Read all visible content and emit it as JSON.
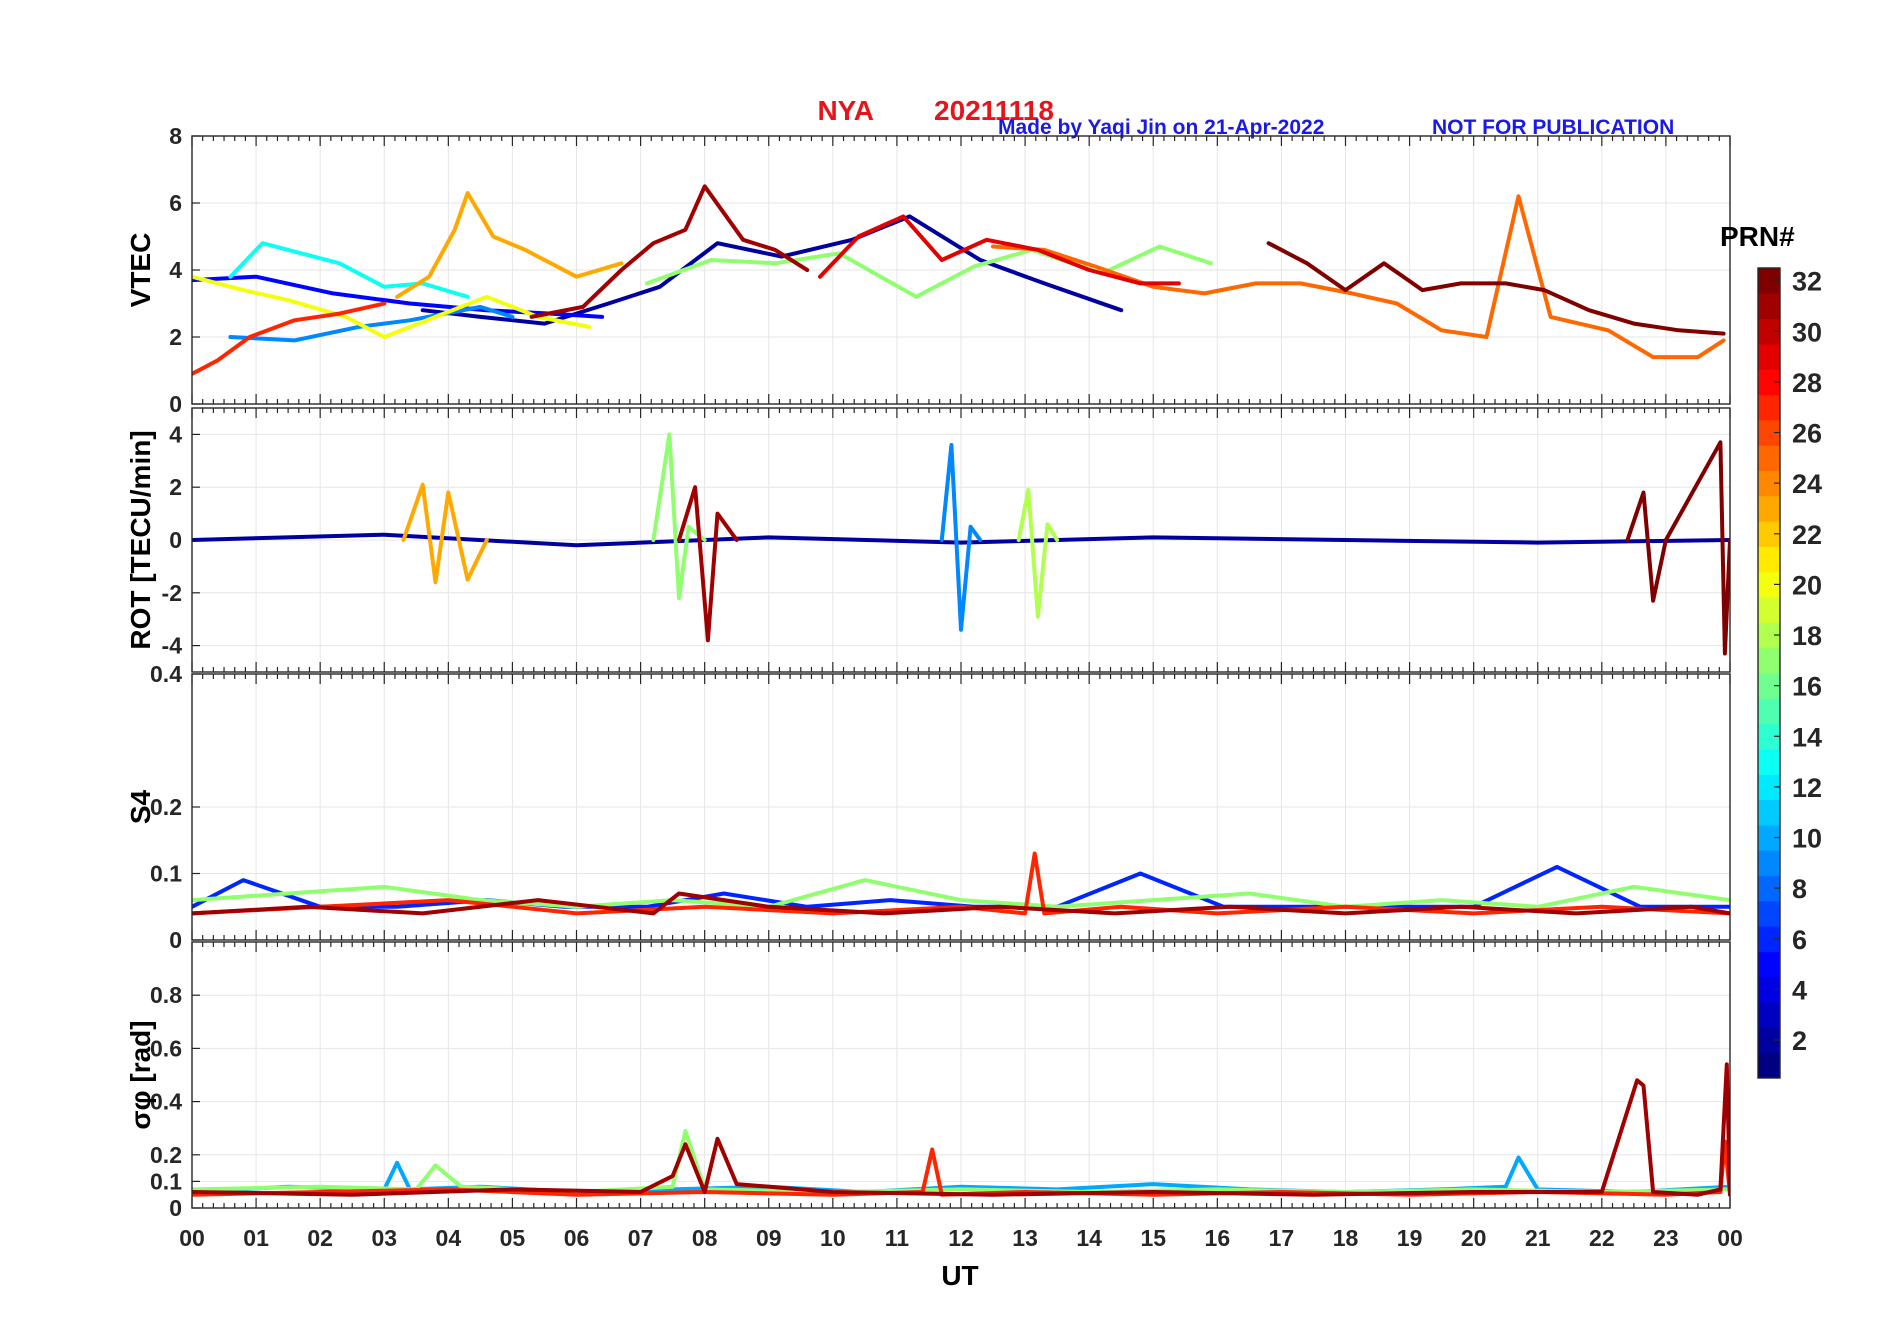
{
  "header": {
    "station": "NYA",
    "date": "20211118",
    "made_by": "Made by Yaqi Jin on 21-Apr-2022",
    "notice": "NOT FOR PUBLICATION",
    "station_color": "#e8141c",
    "note_color": "#1a1ae6"
  },
  "colorbar": {
    "title": "PRN#",
    "min": 1,
    "max": 32,
    "ticks": [
      "2",
      "4",
      "6",
      "8",
      "10",
      "12",
      "14",
      "16",
      "18",
      "20",
      "22",
      "24",
      "26",
      "28",
      "30",
      "32"
    ],
    "colormap": "jet"
  },
  "chart_data": [
    {
      "type": "line",
      "panel": "vtec",
      "ylabel": "VTEC",
      "ylim": [
        0,
        8
      ],
      "yticks": [
        "0",
        "2",
        "4",
        "6",
        "8"
      ],
      "xlim": [
        0,
        24
      ],
      "grid": true,
      "series": [
        {
          "prn": 2,
          "x": [
            3.6,
            4.5,
            5.5,
            6.5,
            7.3,
            8.2,
            9.2,
            10.3,
            11.2,
            12.3,
            13.3,
            14.5
          ],
          "y": [
            2.8,
            2.6,
            2.4,
            3.0,
            3.5,
            4.8,
            4.4,
            4.9,
            5.6,
            4.3,
            3.6,
            2.8
          ]
        },
        {
          "prn": 5,
          "x": [
            0.0,
            1.0,
            2.2,
            3.4,
            4.6,
            5.6,
            6.4
          ],
          "y": [
            3.7,
            3.8,
            3.3,
            3.0,
            2.8,
            2.7,
            2.6
          ]
        },
        {
          "prn": 9,
          "x": [
            0.6,
            1.6,
            2.6,
            3.4,
            4.5,
            5.0
          ],
          "y": [
            2.0,
            1.9,
            2.3,
            2.5,
            2.9,
            2.6
          ]
        },
        {
          "prn": 13,
          "x": [
            0.6,
            1.1,
            1.5,
            2.3,
            3.0,
            3.6,
            4.3
          ],
          "y": [
            3.8,
            4.8,
            4.6,
            4.2,
            3.5,
            3.6,
            3.2
          ]
        },
        {
          "prn": 17,
          "x": [
            7.1,
            8.1,
            9.1,
            10.1,
            11.3,
            12.2,
            13.1,
            14.2,
            15.1,
            15.9
          ],
          "y": [
            3.6,
            4.3,
            4.2,
            4.5,
            3.2,
            4.1,
            4.6,
            3.9,
            4.7,
            4.2
          ]
        },
        {
          "prn": 20,
          "x": [
            0.0,
            0.8,
            1.5,
            2.4,
            3.0,
            3.8,
            4.6,
            5.4,
            6.2
          ],
          "y": [
            3.8,
            3.4,
            3.1,
            2.6,
            2.0,
            2.6,
            3.2,
            2.6,
            2.3
          ]
        },
        {
          "prn": 23,
          "x": [
            3.2,
            3.7,
            4.1,
            4.3,
            4.7,
            5.2,
            6.0,
            6.7
          ],
          "y": [
            3.2,
            3.8,
            5.2,
            6.3,
            5.0,
            4.6,
            3.8,
            4.2
          ]
        },
        {
          "prn": 25,
          "x": [
            12.5,
            13.3,
            14.1,
            15.0,
            15.8,
            16.6,
            17.3,
            18.1,
            18.8,
            19.5,
            20.2,
            20.7,
            21.2,
            22.1,
            22.8,
            23.5,
            23.9
          ],
          "y": [
            4.7,
            4.6,
            4.1,
            3.5,
            3.3,
            3.6,
            3.6,
            3.3,
            3.0,
            2.2,
            2.0,
            6.2,
            2.6,
            2.2,
            1.4,
            1.4,
            1.9
          ]
        },
        {
          "prn": 27,
          "x": [
            0.0,
            0.4,
            0.9,
            1.6,
            2.3,
            3.0
          ],
          "y": [
            0.9,
            1.3,
            2.0,
            2.5,
            2.7,
            3.0
          ]
        },
        {
          "prn": 29,
          "x": [
            9.8,
            10.4,
            11.1,
            11.7,
            12.4,
            13.2,
            14.0,
            14.8,
            15.4
          ],
          "y": [
            3.8,
            5.0,
            5.6,
            4.3,
            4.9,
            4.6,
            4.0,
            3.6,
            3.6
          ]
        },
        {
          "prn": 31,
          "x": [
            5.3,
            6.1,
            6.7,
            7.2,
            7.7,
            8.0,
            8.6,
            9.1,
            9.6
          ],
          "y": [
            2.6,
            2.9,
            4.0,
            4.8,
            5.2,
            6.5,
            4.9,
            4.6,
            4.0
          ]
        },
        {
          "prn": 32,
          "x": [
            16.8,
            17.4,
            18.0,
            18.6,
            19.2,
            19.8,
            20.5,
            21.1,
            21.8,
            22.5,
            23.2,
            23.9
          ],
          "y": [
            4.8,
            4.2,
            3.4,
            4.2,
            3.4,
            3.6,
            3.6,
            3.4,
            2.8,
            2.4,
            2.2,
            2.1
          ]
        }
      ]
    },
    {
      "type": "line",
      "panel": "rot",
      "ylabel": "ROT [TECU/min]",
      "ylim": [
        -5,
        5
      ],
      "yticks": [
        "-4",
        "-2",
        "0",
        "2",
        "4"
      ],
      "xlim": [
        0,
        24
      ],
      "grid": true,
      "series": [
        {
          "prn": 2,
          "x": [
            0.0,
            3.0,
            6.0,
            9.0,
            12.0,
            15.0,
            18.0,
            21.0,
            24.0
          ],
          "y": [
            0,
            0.2,
            -0.2,
            0.1,
            -0.1,
            0.1,
            0,
            -0.1,
            0
          ]
        },
        {
          "prn": 9,
          "x": [
            11.7,
            11.85,
            12.0,
            12.15,
            12.3
          ],
          "y": [
            0,
            3.6,
            -3.4,
            0.5,
            0
          ]
        },
        {
          "prn": 17,
          "x": [
            7.2,
            7.45,
            7.6,
            7.75,
            8.0
          ],
          "y": [
            0,
            4.0,
            -2.2,
            0.5,
            0
          ]
        },
        {
          "prn": 18,
          "x": [
            12.9,
            13.05,
            13.2,
            13.35,
            13.5
          ],
          "y": [
            0,
            1.9,
            -2.9,
            0.6,
            0
          ]
        },
        {
          "prn": 23,
          "x": [
            3.3,
            3.6,
            3.8,
            4.0,
            4.3,
            4.6
          ],
          "y": [
            0,
            2.1,
            -1.6,
            1.8,
            -1.5,
            0
          ]
        },
        {
          "prn": 31,
          "x": [
            7.6,
            7.85,
            8.05,
            8.2,
            8.5
          ],
          "y": [
            0,
            2.0,
            -3.8,
            1.0,
            0
          ]
        },
        {
          "prn": 32,
          "x": [
            22.4,
            22.65,
            22.8,
            23.0,
            23.85,
            23.92,
            24.0
          ],
          "y": [
            0,
            1.8,
            -2.3,
            0,
            3.7,
            -4.3,
            0
          ]
        }
      ]
    },
    {
      "type": "line",
      "panel": "s4",
      "ylabel": "S4",
      "ylim": [
        0,
        0.4
      ],
      "yticks": [
        "0",
        "0.1",
        "0.2",
        "0.4"
      ],
      "xlim": [
        0,
        24
      ],
      "grid": true,
      "series": [
        {
          "prn": 6,
          "x": [
            0.0,
            0.8,
            2.0,
            3.2,
            4.6,
            5.8,
            7.1,
            8.3,
            9.6,
            10.9,
            12.2,
            13.5,
            14.8,
            16.1,
            17.4,
            18.7,
            20.0,
            21.3,
            22.6,
            24.0
          ],
          "y": [
            0.05,
            0.09,
            0.05,
            0.05,
            0.06,
            0.05,
            0.05,
            0.07,
            0.05,
            0.06,
            0.05,
            0.05,
            0.1,
            0.05,
            0.05,
            0.05,
            0.05,
            0.11,
            0.05,
            0.05
          ]
        },
        {
          "prn": 17,
          "x": [
            0.0,
            1.5,
            3.0,
            4.5,
            6.0,
            7.5,
            9.0,
            10.5,
            12.0,
            13.5,
            15.0,
            16.5,
            18.0,
            19.5,
            21.0,
            22.5,
            24.0
          ],
          "y": [
            0.06,
            0.07,
            0.08,
            0.06,
            0.05,
            0.06,
            0.05,
            0.09,
            0.06,
            0.05,
            0.06,
            0.07,
            0.05,
            0.06,
            0.05,
            0.08,
            0.06
          ]
        },
        {
          "prn": 27,
          "x": [
            0.0,
            2.0,
            4.0,
            6.0,
            8.0,
            10.0,
            12.0,
            13.0,
            13.15,
            13.3,
            14.5,
            16.0,
            18.0,
            20.0,
            22.0,
            24.0
          ],
          "y": [
            0.04,
            0.05,
            0.06,
            0.04,
            0.05,
            0.04,
            0.05,
            0.04,
            0.13,
            0.04,
            0.05,
            0.04,
            0.05,
            0.04,
            0.05,
            0.04
          ]
        },
        {
          "prn": 31,
          "x": [
            0.0,
            1.8,
            3.6,
            5.4,
            7.2,
            7.6,
            9.0,
            10.8,
            12.6,
            14.4,
            16.2,
            18.0,
            19.8,
            21.6,
            23.4,
            24.0
          ],
          "y": [
            0.04,
            0.05,
            0.04,
            0.06,
            0.04,
            0.07,
            0.05,
            0.04,
            0.05,
            0.04,
            0.05,
            0.04,
            0.05,
            0.04,
            0.05,
            0.04
          ]
        }
      ]
    },
    {
      "type": "line",
      "panel": "sigma_phi",
      "ylabel": "σφ [rad]",
      "ylim": [
        0,
        1.0
      ],
      "yticks": [
        "0",
        "0.1",
        "0.2",
        "0.4",
        "0.6",
        "0.8"
      ],
      "xlabel": "UT",
      "xticks": [
        "00",
        "01",
        "02",
        "03",
        "04",
        "05",
        "06",
        "07",
        "08",
        "09",
        "10",
        "11",
        "12",
        "13",
        "14",
        "15",
        "16",
        "17",
        "18",
        "19",
        "20",
        "21",
        "22",
        "23",
        "00"
      ],
      "xlim": [
        0,
        24
      ],
      "grid": true,
      "series": [
        {
          "prn": 10,
          "x": [
            0.0,
            1.5,
            3.0,
            3.2,
            3.4,
            4.5,
            6.0,
            7.5,
            9.0,
            10.5,
            12.0,
            13.5,
            15.0,
            16.5,
            18.0,
            19.5,
            20.5,
            20.7,
            21.0,
            22.5,
            24.0
          ],
          "y": [
            0.06,
            0.08,
            0.07,
            0.17,
            0.07,
            0.08,
            0.06,
            0.07,
            0.08,
            0.06,
            0.08,
            0.07,
            0.09,
            0.07,
            0.06,
            0.07,
            0.08,
            0.19,
            0.07,
            0.06,
            0.08
          ]
        },
        {
          "prn": 17,
          "x": [
            0.0,
            2.0,
            3.5,
            3.8,
            4.2,
            6.0,
            7.5,
            7.7,
            8.0,
            10.0,
            12.0,
            14.0,
            16.0,
            18.0,
            20.0,
            22.0,
            24.0
          ],
          "y": [
            0.07,
            0.08,
            0.07,
            0.16,
            0.08,
            0.06,
            0.08,
            0.29,
            0.07,
            0.06,
            0.07,
            0.06,
            0.07,
            0.06,
            0.07,
            0.06,
            0.07
          ]
        },
        {
          "prn": 27,
          "x": [
            0.0,
            2.0,
            4.0,
            6.0,
            8.0,
            10.0,
            11.4,
            11.55,
            11.7,
            13.0,
            15.0,
            17.0,
            19.0,
            21.0,
            23.0,
            23.85,
            23.92,
            24.0
          ],
          "y": [
            0.05,
            0.06,
            0.07,
            0.05,
            0.06,
            0.05,
            0.06,
            0.22,
            0.05,
            0.06,
            0.05,
            0.06,
            0.05,
            0.06,
            0.05,
            0.06,
            0.25,
            0.05
          ]
        },
        {
          "prn": 31,
          "x": [
            0.0,
            2.5,
            5.0,
            7.0,
            7.5,
            7.7,
            8.0,
            8.2,
            8.5,
            10.0,
            12.5,
            15.0,
            17.5,
            20.0,
            22.0,
            22.55,
            22.65,
            22.8,
            23.5,
            23.85,
            23.95,
            24.0
          ],
          "y": [
            0.06,
            0.05,
            0.07,
            0.06,
            0.12,
            0.24,
            0.06,
            0.26,
            0.09,
            0.06,
            0.05,
            0.06,
            0.05,
            0.06,
            0.06,
            0.48,
            0.46,
            0.06,
            0.05,
            0.07,
            0.54,
            0.05
          ]
        }
      ]
    }
  ]
}
